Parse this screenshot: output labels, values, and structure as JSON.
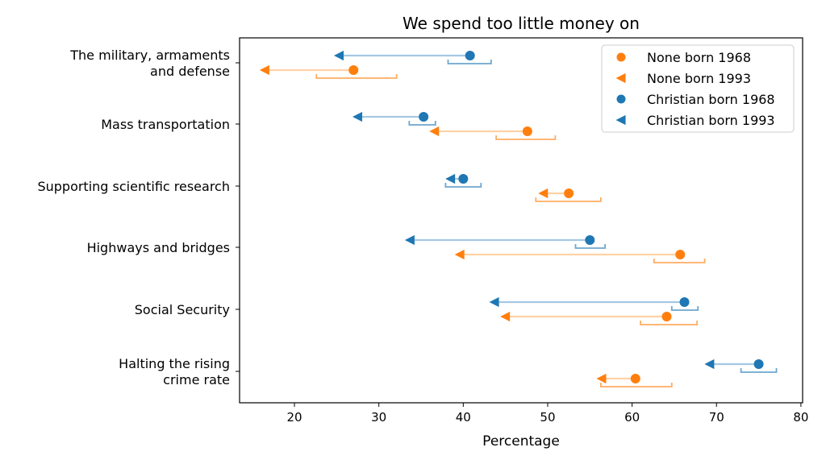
{
  "chart_data": {
    "type": "scatter",
    "title": "We spend too little money on",
    "xlabel": "Percentage",
    "ylabel": "",
    "xlim": [
      13.5,
      80.2
    ],
    "x_ticks": [
      20,
      30,
      40,
      50,
      60,
      70,
      80
    ],
    "grid": false,
    "legend_position": "top-right",
    "categories": [
      {
        "lines": [
          "The military, armaments",
          "and defense"
        ]
      },
      {
        "lines": [
          "Mass transportation"
        ]
      },
      {
        "lines": [
          "Supporting scientific research"
        ]
      },
      {
        "lines": [
          "Highways and bridges"
        ]
      },
      {
        "lines": [
          "Social Security"
        ]
      },
      {
        "lines": [
          "Halting the rising",
          "crime rate"
        ]
      }
    ],
    "series": [
      {
        "group": "Christian",
        "color": "#1f77b4",
        "light_color": "#a6c8e3",
        "born1968": [
          40.8,
          35.3,
          40.0,
          55.0,
          66.2,
          75.0
        ],
        "born1993": [
          25.3,
          27.5,
          38.5,
          33.7,
          43.7,
          69.2
        ],
        "interval_1993": [
          [
            38.2,
            43.3
          ],
          [
            33.6,
            36.7
          ],
          [
            37.9,
            42.1
          ],
          [
            53.3,
            56.8
          ],
          [
            64.7,
            67.8
          ],
          [
            72.9,
            77.1
          ]
        ]
      },
      {
        "group": "None",
        "color": "#ff7f0e",
        "light_color": "#ffd1a6",
        "born1968": [
          27.0,
          47.6,
          52.5,
          65.7,
          64.1,
          60.4
        ],
        "born1993": [
          16.5,
          36.6,
          49.5,
          39.6,
          45.0,
          56.4
        ],
        "interval_1993": [
          [
            22.6,
            32.1
          ],
          [
            43.9,
            50.9
          ],
          [
            48.6,
            56.3
          ],
          [
            62.6,
            68.6
          ],
          [
            61.0,
            67.7
          ],
          [
            56.3,
            64.7
          ]
        ]
      }
    ],
    "legend": [
      {
        "label": "None born 1968",
        "color": "#ff7f0e",
        "marker": "circle"
      },
      {
        "label": "None born 1993",
        "color": "#ff7f0e",
        "marker": "triangle-left"
      },
      {
        "label": "Christian born 1968",
        "color": "#1f77b4",
        "marker": "circle"
      },
      {
        "label": "Christian born 1993",
        "color": "#1f77b4",
        "marker": "triangle-left"
      }
    ]
  }
}
